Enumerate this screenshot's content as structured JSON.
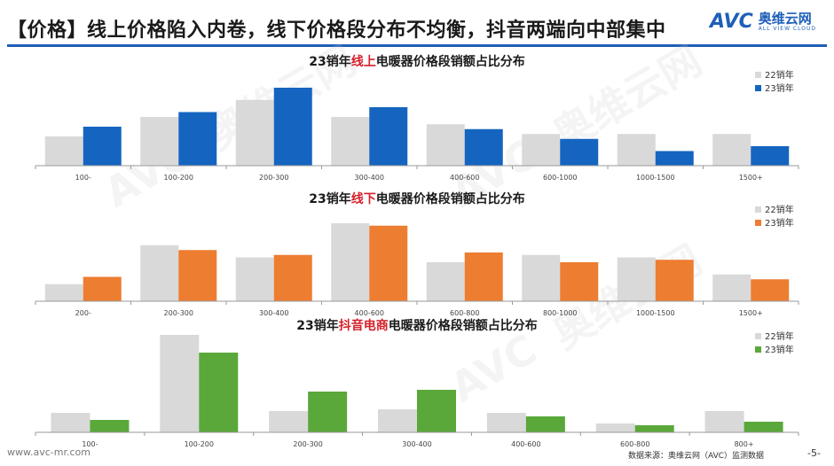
{
  "title": "【价格】线上价格陷入内卷，线下价格段分布不均衡，抖音两端向中部集中",
  "logo": {
    "mark": "AVC",
    "cn": "奥维云网",
    "en": "ALL VIEW CLOUD"
  },
  "watermark": {
    "mark": "AVC",
    "cn": "奥维云网",
    "en": "ALL VIEW CLOUD"
  },
  "footer": {
    "url": "www.avc-mr.com",
    "source": "数据来源：奥维云网（AVC）监测数据",
    "page": "-5-"
  },
  "colors": {
    "title_rule": "#1e5fb8",
    "series_22": "#d9d9d9",
    "online": "#1565c0",
    "offline": "#ed7d31",
    "douyin": "#5aa83a",
    "highlight": "#d4202a"
  },
  "chart_data": [
    {
      "type": "bar",
      "title_pre": "23销年",
      "title_hl": "线上",
      "title_post": "电暖器价格段销额占比分布",
      "categories": [
        "100-",
        "100-200",
        "200-300",
        "300-400",
        "400-600",
        "600-1000",
        "1000-1500",
        "1500+"
      ],
      "series": [
        {
          "name": "22销年",
          "values": [
            12,
            20,
            27,
            20,
            17,
            13,
            13,
            13
          ]
        },
        {
          "name": "23销年",
          "values": [
            16,
            22,
            32,
            24,
            15,
            11,
            6,
            8
          ]
        }
      ],
      "ylim": [
        0,
        32
      ]
    },
    {
      "type": "bar",
      "title_pre": "23销年",
      "title_hl": "线下",
      "title_post": "电暖器价格段销额占比分布",
      "categories": [
        "200-",
        "200-300",
        "300-400",
        "400-600",
        "600-800",
        "800-1000",
        "1000-1500",
        "1500+"
      ],
      "series": [
        {
          "name": "22销年",
          "values": [
            7,
            23,
            18,
            32,
            16,
            19,
            18,
            11
          ]
        },
        {
          "name": "23销年",
          "values": [
            10,
            21,
            19,
            31,
            20,
            16,
            17,
            9
          ]
        }
      ],
      "ylim": [
        0,
        32
      ]
    },
    {
      "type": "bar",
      "title_pre": "23销年",
      "title_hl": "抖音电商",
      "title_post": "电暖器价格段销额占比分布",
      "categories": [
        "100-",
        "100-200",
        "200-300",
        "300-400",
        "400-600",
        "600-800",
        "800+"
      ],
      "series": [
        {
          "name": "22销年",
          "values": [
            11,
            55,
            12,
            13,
            11,
            5,
            12
          ]
        },
        {
          "name": "23销年",
          "values": [
            7,
            45,
            23,
            24,
            9,
            4,
            6
          ]
        }
      ],
      "ylim": [
        0,
        55
      ]
    }
  ]
}
